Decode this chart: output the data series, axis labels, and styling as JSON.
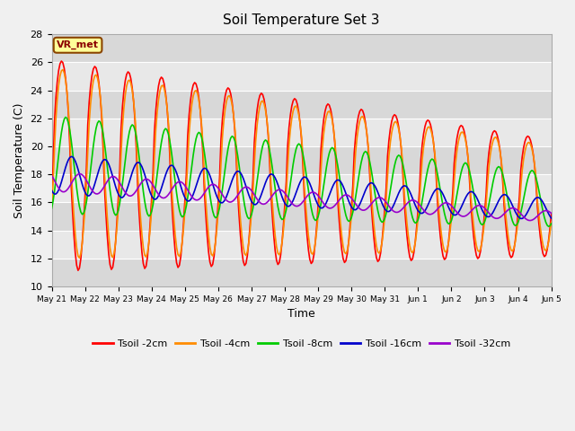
{
  "title": "Soil Temperature Set 3",
  "xlabel": "Time",
  "ylabel": "Soil Temperature (C)",
  "ylim": [
    10,
    28
  ],
  "yticks": [
    10,
    12,
    14,
    16,
    18,
    20,
    22,
    24,
    26,
    28
  ],
  "annotation": "VR_met",
  "bg_color": "#f0f0f0",
  "plot_bg_light": "#f0f0f0",
  "plot_bg_dark": "#dcdcdc",
  "series_names": [
    "Tsoil -2cm",
    "Tsoil -4cm",
    "Tsoil -8cm",
    "Tsoil -16cm",
    "Tsoil -32cm"
  ],
  "series_colors": [
    "#ff0000",
    "#ff8c00",
    "#00cc00",
    "#0000cc",
    "#9900cc"
  ],
  "x_tick_labels": [
    "May 21",
    "May 22",
    "May 23",
    "May 24",
    "May 25",
    "May 26",
    "May 27",
    "May 28",
    "May 29",
    "May 30",
    "May 31",
    "Jun 1",
    "Jun 2",
    "Jun 3",
    "Jun 4",
    "Jun 5"
  ],
  "num_days": 15,
  "pts_per_day": 24
}
